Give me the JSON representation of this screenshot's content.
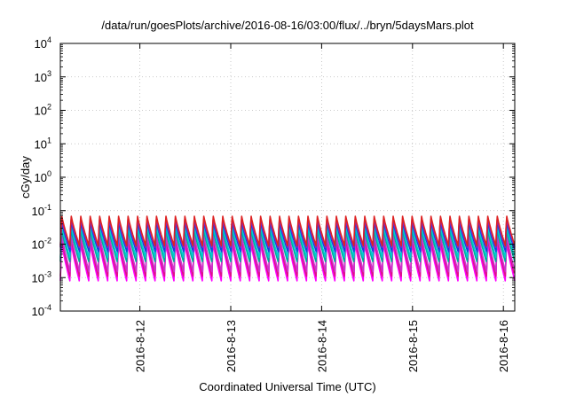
{
  "chart_data": {
    "type": "line",
    "title": "/data/run/goesPlots/archive/2016-08-16/03:00/flux/../bryn/5daysMars.plot",
    "xlabel": "Coordinated Universal Time (UTC)",
    "ylabel": "cGy/day",
    "y_scale": "log",
    "ylim": [
      0.0001,
      10000
    ],
    "y_ticks": [
      {
        "base": "10",
        "exp": "-4",
        "value": 0.0001
      },
      {
        "base": "10",
        "exp": "-3",
        "value": 0.001
      },
      {
        "base": "10",
        "exp": "-2",
        "value": 0.01
      },
      {
        "base": "10",
        "exp": "-1",
        "value": 0.1
      },
      {
        "base": "10",
        "exp": "0",
        "value": 1
      },
      {
        "base": "10",
        "exp": "1",
        "value": 10
      },
      {
        "base": "10",
        "exp": "2",
        "value": 100
      },
      {
        "base": "10",
        "exp": "3",
        "value": 1000
      },
      {
        "base": "10",
        "exp": "4",
        "value": 10000
      }
    ],
    "xlim": [
      "2016-08-11 03:00",
      "2016-08-16 03:00"
    ],
    "x_ticks": [
      "2016-8-12",
      "2016-8-13",
      "2016-8-14",
      "2016-8-15",
      "2016-8-16"
    ],
    "grid": true,
    "legend": "none",
    "oscillation": {
      "cycles": 48,
      "cycle_hours": 2.5
    },
    "series": [
      {
        "color": "#ff00ff",
        "peak": 0.012,
        "trough": 0.0008
      },
      {
        "color": "#dd1188",
        "peak": 0.016,
        "trough": 0.0011
      },
      {
        "color": "#cc33cc",
        "peak": 0.02,
        "trough": 0.0015
      },
      {
        "color": "#00aa99",
        "peak": 0.03,
        "trough": 0.003
      },
      {
        "color": "#00cccc",
        "peak": 0.038,
        "trough": 0.004
      },
      {
        "color": "#1144dd",
        "peak": 0.05,
        "trough": 0.006
      },
      {
        "color": "#8822cc",
        "peak": 0.06,
        "trough": 0.008
      },
      {
        "color": "#dd2222",
        "peak": 0.075,
        "trough": 0.009
      }
    ]
  }
}
